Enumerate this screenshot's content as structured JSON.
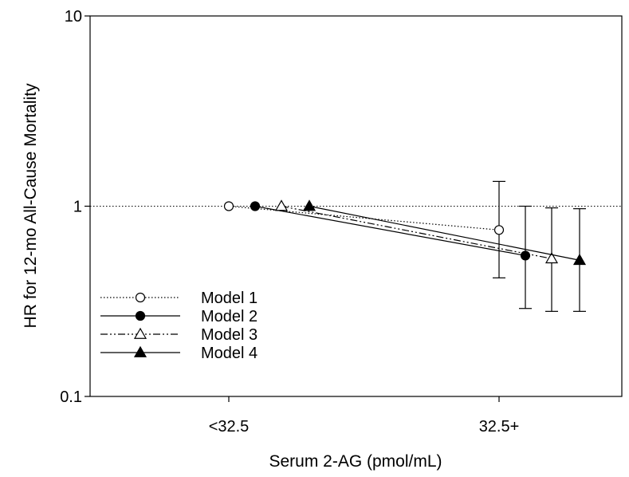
{
  "chart_data": {
    "type": "scatter",
    "xlabel": "Serum 2-AG (pmol/mL)",
    "ylabel": "HR for 12-mo All-Cause Mortality",
    "y_scale": "log",
    "ylim": [
      0.1,
      10
    ],
    "y_ticks": [
      {
        "value": 0.1,
        "label": "0.1"
      },
      {
        "value": 1,
        "label": "1"
      },
      {
        "value": 10,
        "label": "10"
      }
    ],
    "categories": [
      "<32.5",
      "32.5+"
    ],
    "reference_line": {
      "y": 1,
      "style": "dotted"
    },
    "legend_position": "lower-left",
    "series": [
      {
        "name": "Model 1",
        "marker": "open-circle",
        "line": "dotted",
        "points": [
          {
            "category": "<32.5",
            "y": 1.0
          },
          {
            "category": "32.5+",
            "y": 0.75,
            "ci_low": 0.42,
            "ci_high": 1.35
          }
        ]
      },
      {
        "name": "Model 2",
        "marker": "filled-circle",
        "line": "solid",
        "points": [
          {
            "category": "<32.5",
            "y": 1.0
          },
          {
            "category": "32.5+",
            "y": 0.55,
            "ci_low": 0.29,
            "ci_high": 1.0
          }
        ]
      },
      {
        "name": "Model 3",
        "marker": "open-triangle",
        "line": "dash-dot-dot",
        "points": [
          {
            "category": "<32.5",
            "y": 1.0
          },
          {
            "category": "32.5+",
            "y": 0.53,
            "ci_low": 0.28,
            "ci_high": 0.98
          }
        ]
      },
      {
        "name": "Model 4",
        "marker": "filled-triangle",
        "line": "solid",
        "points": [
          {
            "category": "<32.5",
            "y": 1.0
          },
          {
            "category": "32.5+",
            "y": 0.52,
            "ci_low": 0.28,
            "ci_high": 0.97
          }
        ]
      }
    ]
  }
}
